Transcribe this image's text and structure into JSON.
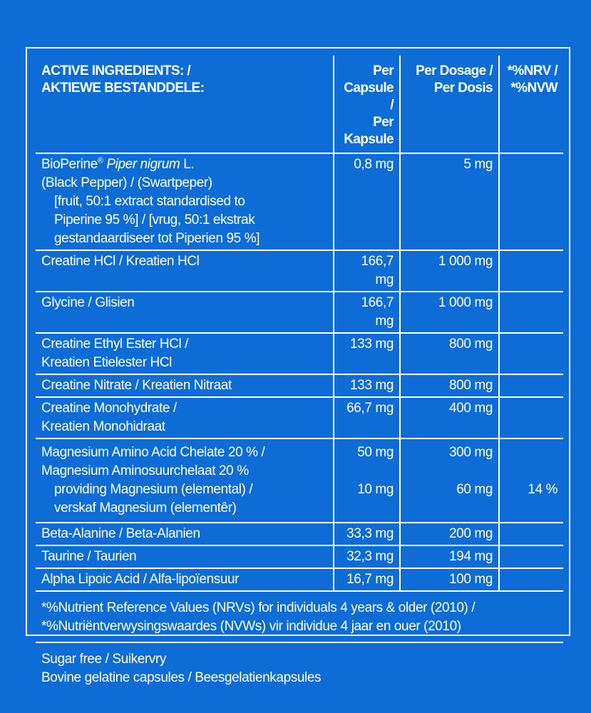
{
  "header": {
    "ingredients_en": "ACTIVE INGREDIENTS: /",
    "ingredients_af": "AKTIEWE BESTANDDELE:",
    "per_capsule_en": "Per Capsule /",
    "per_capsule_af": "Per Kapsule",
    "per_dosage_en": "Per Dosage /",
    "per_dosage_af": "Per Dosis",
    "nrv_en": "*%NRV /",
    "nrv_af": "*%NVW"
  },
  "bioperine": {
    "brand": "BioPerine",
    "reg": "®",
    "latin": "Piper nigrum",
    "suffix": " L.",
    "line2": "(Black Pepper) / (Swartpeper)",
    "line3": "[fruit, 50:1 extract standardised to",
    "line4": "Piperine 95 %] / [vrug, 50:1 ekstrak",
    "line5": "gestandaardiseer tot Piperien 95 %]",
    "per_capsule": "0,8 mg",
    "per_dosage": "5 mg"
  },
  "rows": [
    {
      "name1": "Creatine HCl / Kreatien HCl",
      "name2": "",
      "per_capsule": "166,7 mg",
      "per_dosage": "1 000 mg",
      "nrv": ""
    },
    {
      "name1": "Glycine / Glisien",
      "name2": "",
      "per_capsule": "166,7 mg",
      "per_dosage": "1 000 mg",
      "nrv": ""
    },
    {
      "name1": "Creatine Ethyl Ester HCl /",
      "name2": "Kreatien Etielester HCl",
      "per_capsule": "133 mg",
      "per_dosage": "800 mg",
      "nrv": ""
    },
    {
      "name1": "Creatine Nitrate / Kreatien Nitraat",
      "name2": "",
      "per_capsule": "133 mg",
      "per_dosage": "800 mg",
      "nrv": ""
    },
    {
      "name1": "Creatine Monohydrate /",
      "name2": "Kreatien Monohidraat",
      "per_capsule": "66,7 mg",
      "per_dosage": "400 mg",
      "nrv": ""
    }
  ],
  "magnesium": {
    "line1": "Magnesium Amino Acid Chelate 20 % /",
    "line2": "Magnesium Aminosuurchelaat 20 %",
    "line3": "providing Magnesium (elemental) /",
    "line4": "verskaf Magnesium (elementêr)",
    "per_capsule": "50 mg",
    "per_dosage": "300 mg",
    "elemental_per_capsule": "10 mg",
    "elemental_per_dosage": "60 mg",
    "elemental_nrv": "14 %"
  },
  "rows2": [
    {
      "name": "Beta-Alanine / Beta-Alanien",
      "per_capsule": "33,3 mg",
      "per_dosage": "200 mg"
    },
    {
      "name": "Taurine / Taurien",
      "per_capsule": "32,3 mg",
      "per_dosage": "194 mg"
    },
    {
      "name": "Alpha Lipoic Acid / Alfa-lipoïensuur",
      "per_capsule": "16,7 mg",
      "per_dosage": "100 mg"
    }
  ],
  "footnote": {
    "line1": "*%Nutrient Reference Values (NRVs) for individuals 4 years & older (2010) /",
    "line2": "*%Nutriëntverwysingswaardes (NVWs) vir individue 4 jaar en ouer (2010)"
  },
  "notes": {
    "sugar": "Sugar free / Suikervry",
    "capsules": "Bovine gelatine capsules / Beesgelatienkapsules"
  }
}
